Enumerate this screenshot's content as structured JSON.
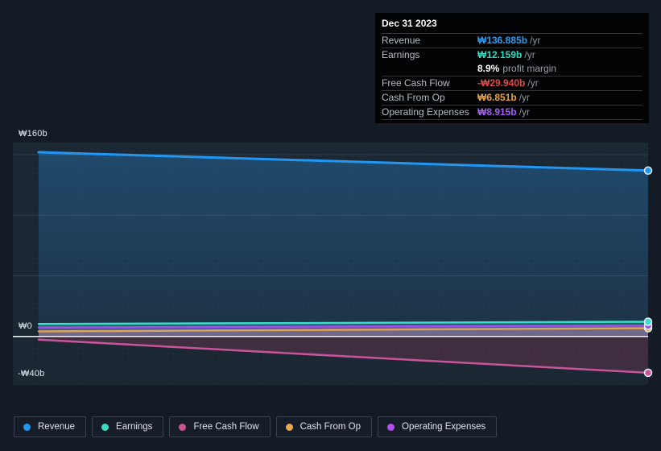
{
  "tooltip": {
    "date": "Dec 31 2023",
    "rows": [
      {
        "label": "Revenue",
        "value": "₩136.885b",
        "unit": "/yr",
        "color": "#2b9df0"
      },
      {
        "label": "Earnings",
        "value": "₩12.159b",
        "unit": "/yr",
        "color": "#33d9c2",
        "margin_bold": "8.9%",
        "margin_text": "profit margin"
      },
      {
        "label": "Free Cash Flow",
        "value": "-₩29.940b",
        "unit": "/yr",
        "color": "#e04a42"
      },
      {
        "label": "Cash From Op",
        "value": "₩6.851b",
        "unit": "/yr",
        "color": "#e8a33d"
      },
      {
        "label": "Operating Expenses",
        "value": "₩8.915b",
        "unit": "/yr",
        "color": "#a45ef2"
      }
    ]
  },
  "chart_data": {
    "type": "line",
    "title": "",
    "x_domain": [
      "start",
      "Dec 31 2023"
    ],
    "ylim": [
      -40,
      160
    ],
    "y_axis_labels": [
      {
        "text": "₩160b",
        "value": 160
      },
      {
        "text": "₩0",
        "value": 0
      },
      {
        "text": "-₩40b",
        "value": -40
      }
    ],
    "gridline_values": [
      150,
      100,
      50
    ],
    "zero_line_value": 0,
    "grid": true,
    "legend_position": "bottom",
    "series": [
      {
        "name": "Revenue",
        "color": "#2196f3",
        "values": [
          152.0,
          136.885
        ],
        "fill": "blue-gradient"
      },
      {
        "name": "Earnings",
        "color": "#3bdccb",
        "values": [
          10.3,
          12.159
        ],
        "fill": "rgba(63,224,205,0.25)"
      },
      {
        "name": "Free Cash Flow",
        "color": "#c9549c",
        "values": [
          -2.6,
          -29.94
        ],
        "fill": "rgba(225,80,120,0.18)"
      },
      {
        "name": "Cash From Op",
        "color": "#e0a353",
        "values": [
          4.2,
          6.851
        ],
        "fill": "rgba(221,159,85,0.30)"
      },
      {
        "name": "Operating Expenses",
        "color": "#a14ff2",
        "values": [
          7.4,
          8.915
        ],
        "fill": "rgba(157,85,242,0.30)"
      }
    ],
    "colors": {
      "page_background": "#151b24",
      "plot_background": "#1c2734",
      "gridline": "rgba(140,165,190,0.18)",
      "zero_line": "#f2f5f8"
    }
  },
  "legend": {
    "items": [
      {
        "label": "Revenue",
        "color": "#2196f3"
      },
      {
        "label": "Earnings",
        "color": "#3dd9c0"
      },
      {
        "label": "Free Cash Flow",
        "color": "#c9548e"
      },
      {
        "label": "Cash From Op",
        "color": "#eaa94e"
      },
      {
        "label": "Operating Expenses",
        "color": "#b44df2"
      }
    ]
  }
}
